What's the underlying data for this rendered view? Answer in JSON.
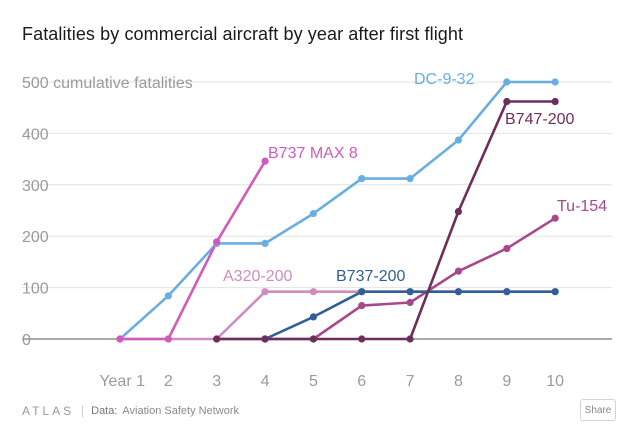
{
  "title": "Fatalities by commercial aircraft by year after first flight",
  "footer": {
    "brand": "ATLAS",
    "source_label": "Data:",
    "source": "Aviation Safety Network",
    "share_label": "Share"
  },
  "chart_data": {
    "type": "line",
    "title": "Fatalities by commercial aircraft by year after first flight",
    "ylabel": "500 cumulative fatalities",
    "x": [
      1,
      2,
      3,
      4,
      5,
      6,
      7,
      8,
      9,
      10
    ],
    "x_tick_labels": [
      "Year 1",
      "2",
      "3",
      "4",
      "5",
      "6",
      "7",
      "8",
      "9",
      "10"
    ],
    "y_ticks": [
      0,
      100,
      200,
      300,
      400,
      500
    ],
    "y_tick_labels": [
      "0",
      "100",
      "200",
      "300",
      "400",
      "500 cumulative fatalities"
    ],
    "ylim": [
      0,
      500
    ],
    "series": [
      {
        "name": "A320-200",
        "color": "#cf8cbf",
        "x": [
          1,
          2,
          3,
          4,
          5,
          6,
          7,
          8,
          9,
          10
        ],
        "values": [
          0,
          0,
          0,
          92,
          92,
          92,
          92,
          92,
          92,
          92
        ]
      },
      {
        "name": "Tu-154",
        "color": "#a8488c",
        "x": [
          3,
          4,
          5,
          6,
          7,
          8,
          9,
          10
        ],
        "values": [
          0,
          0,
          0,
          65,
          71,
          132,
          176,
          235
        ]
      },
      {
        "name": "B737-200",
        "color": "#2f5f96",
        "x": [
          4,
          5,
          6,
          7,
          8,
          9,
          10
        ],
        "values": [
          0,
          43,
          92,
          92,
          92,
          92,
          92
        ]
      },
      {
        "name": "B747-200",
        "color": "#6e2e5d",
        "x": [
          3,
          4,
          5,
          6,
          7,
          8,
          9,
          10
        ],
        "values": [
          0,
          0,
          0,
          0,
          0,
          248,
          462,
          462
        ]
      },
      {
        "name": "DC-9-32",
        "color": "#6aaee0",
        "x": [
          1,
          2,
          3,
          4,
          5,
          6,
          7,
          8,
          9,
          10
        ],
        "values": [
          0,
          84,
          186,
          186,
          244,
          312,
          312,
          387,
          500,
          500
        ]
      },
      {
        "name": "B737 MAX 8",
        "color": "#cf5cbd",
        "x": [
          1,
          2,
          3,
          4
        ],
        "values": [
          0,
          0,
          189,
          346
        ]
      }
    ]
  }
}
